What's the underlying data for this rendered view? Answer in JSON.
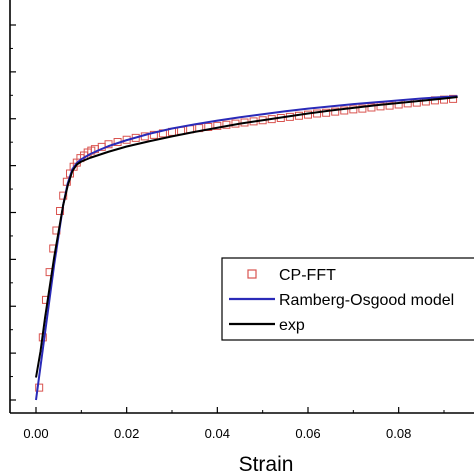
{
  "chart_data": {
    "type": "line",
    "xlabel": "Strain",
    "ylabel": "",
    "xlim": [
      -0.005,
      0.093
    ],
    "ylim": [
      0,
      1
    ],
    "x_ticks": [
      "0.00",
      "0.02",
      "0.04",
      "0.06",
      "0.08"
    ],
    "legend_position": "bottom-right",
    "grid": false,
    "series": [
      {
        "name": "CP-FFT",
        "style": "square-markers",
        "color": "#d9534f",
        "x": [
          0.0007,
          0.0015,
          0.0022,
          0.003,
          0.0038,
          0.0045,
          0.0053,
          0.006,
          0.0068,
          0.0075,
          0.0083,
          0.009,
          0.0098,
          0.0106,
          0.0114,
          0.0122,
          0.013,
          0.0145,
          0.016,
          0.018,
          0.02,
          0.022,
          0.024,
          0.026,
          0.028,
          0.03,
          0.032,
          0.034,
          0.036,
          0.038,
          0.04,
          0.042,
          0.044,
          0.046,
          0.048,
          0.05,
          0.052,
          0.054,
          0.056,
          0.058,
          0.06,
          0.062,
          0.064,
          0.066,
          0.068,
          0.07,
          0.072,
          0.074,
          0.076,
          0.078,
          0.08,
          0.082,
          0.084,
          0.086,
          0.088,
          0.09,
          0.092
        ],
        "y": [
          0.033,
          0.167,
          0.267,
          0.341,
          0.404,
          0.452,
          0.504,
          0.545,
          0.582,
          0.604,
          0.622,
          0.633,
          0.645,
          0.652,
          0.66,
          0.665,
          0.669,
          0.675,
          0.682,
          0.688,
          0.694,
          0.699,
          0.703,
          0.707,
          0.711,
          0.715,
          0.718,
          0.722,
          0.725,
          0.728,
          0.731,
          0.734,
          0.737,
          0.74,
          0.743,
          0.746,
          0.749,
          0.752,
          0.755,
          0.758,
          0.761,
          0.764,
          0.766,
          0.769,
          0.772,
          0.775,
          0.777,
          0.78,
          0.783,
          0.785,
          0.788,
          0.791,
          0.793,
          0.796,
          0.799,
          0.801,
          0.803
        ]
      },
      {
        "name": "Ramberg-Osgood model",
        "style": "line",
        "color": "#2a2ab8",
        "x": [
          0.0,
          0.001,
          0.002,
          0.003,
          0.004,
          0.005,
          0.006,
          0.007,
          0.008,
          0.009,
          0.01,
          0.012,
          0.014,
          0.016,
          0.018,
          0.02,
          0.025,
          0.03,
          0.035,
          0.04,
          0.045,
          0.05,
          0.055,
          0.06,
          0.065,
          0.07,
          0.075,
          0.08,
          0.085,
          0.09,
          0.093
        ],
        "y": [
          0.0,
          0.09,
          0.18,
          0.27,
          0.36,
          0.44,
          0.52,
          0.578,
          0.615,
          0.632,
          0.642,
          0.656,
          0.667,
          0.677,
          0.685,
          0.693,
          0.71,
          0.724,
          0.735,
          0.745,
          0.754,
          0.762,
          0.77,
          0.777,
          0.783,
          0.789,
          0.794,
          0.799,
          0.804,
          0.808,
          0.81
        ]
      },
      {
        "name": "exp",
        "style": "line",
        "color": "#000000",
        "x": [
          0.0,
          0.001,
          0.002,
          0.003,
          0.004,
          0.005,
          0.006,
          0.007,
          0.008,
          0.009,
          0.01,
          0.012,
          0.014,
          0.016,
          0.018,
          0.02,
          0.025,
          0.03,
          0.035,
          0.04,
          0.045,
          0.05,
          0.055,
          0.06,
          0.065,
          0.07,
          0.075,
          0.08,
          0.085,
          0.09,
          0.093
        ],
        "y": [
          0.06,
          0.13,
          0.22,
          0.3,
          0.38,
          0.45,
          0.52,
          0.572,
          0.61,
          0.628,
          0.636,
          0.646,
          0.654,
          0.662,
          0.669,
          0.676,
          0.69,
          0.703,
          0.715,
          0.726,
          0.737,
          0.746,
          0.755,
          0.764,
          0.772,
          0.779,
          0.786,
          0.792,
          0.798,
          0.804,
          0.808
        ]
      }
    ]
  }
}
